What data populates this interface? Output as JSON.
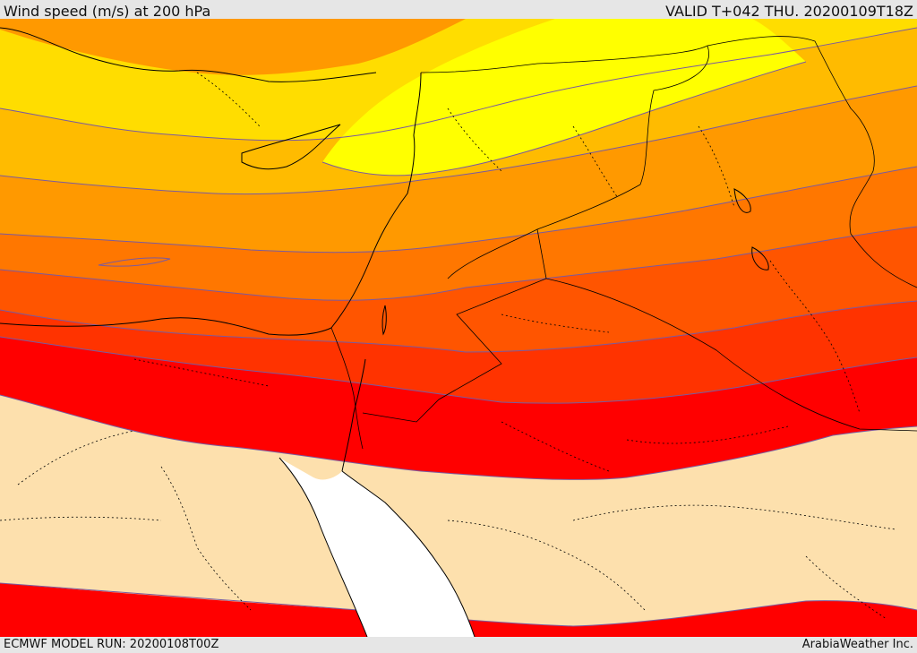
{
  "header": {
    "title": "Wind speed (m/s) at 200 hPa",
    "valid": "VALID T+042 THU. 20200109T18Z"
  },
  "footer": {
    "model_run": "ECMWF MODEL RUN: 20200108T00Z",
    "credit": "ArabiaWeather Inc."
  },
  "colors": {
    "land": "#fde0ad",
    "sea": "#ffffff",
    "band_yellow": "#ffff00",
    "band_yellow_orange": "#ffdd00",
    "band_light_orange": "#ffbb00",
    "band_orange": "#ff9900",
    "band_dark_orange": "#ff7700",
    "band_red_orange": "#ff5500",
    "band_red_2": "#ff3300",
    "band_red": "#ff0000",
    "contour_line": "#7a5aa0",
    "coastline": "#000000"
  }
}
